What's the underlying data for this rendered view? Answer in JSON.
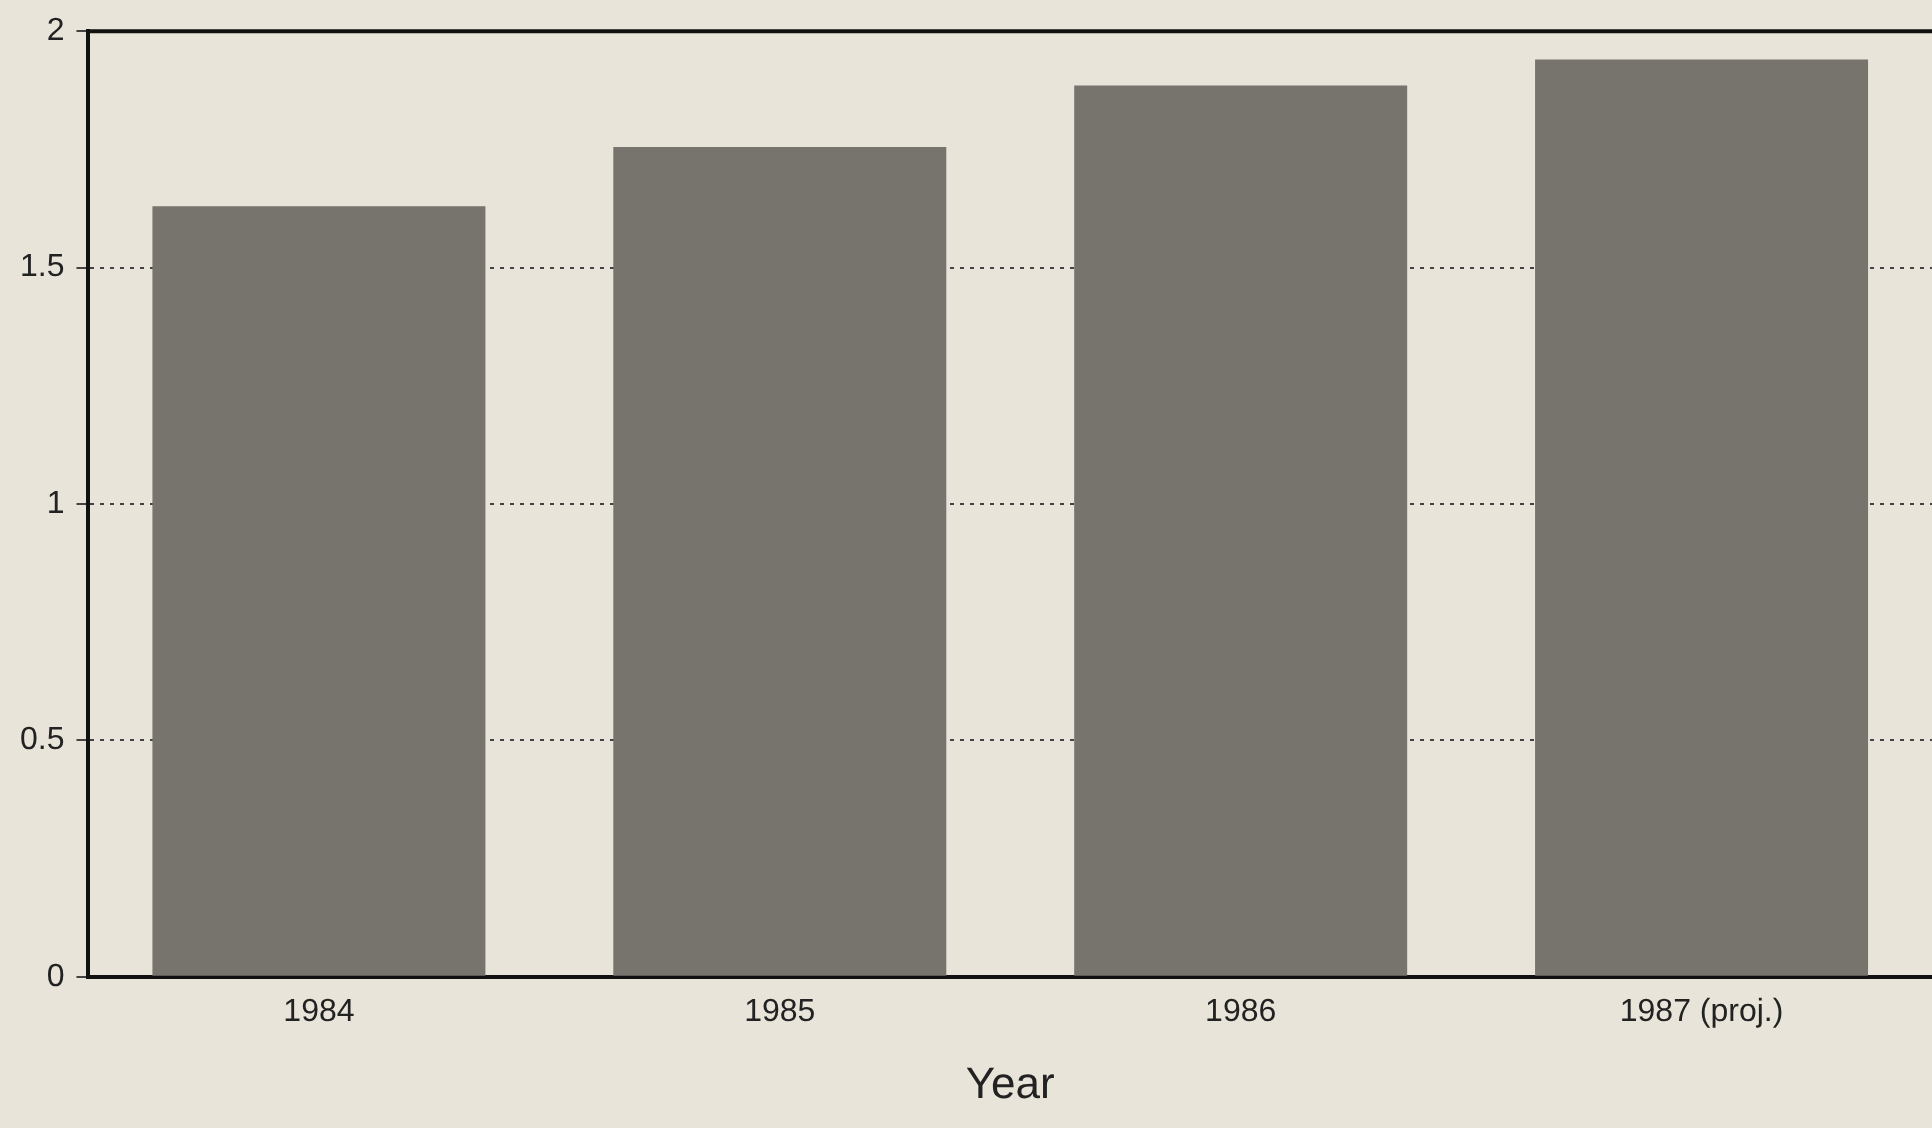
{
  "chart_data": {
    "type": "bar",
    "xlabel": "Year",
    "categories": [
      "1984",
      "1985",
      "1986",
      "1987 (proj.)"
    ],
    "values": [
      1.63,
      1.755,
      1.885,
      1.94
    ],
    "color": "#77736d",
    "ylim": [
      0,
      2
    ],
    "yticks": [
      0,
      0.5,
      1,
      1.5,
      2
    ],
    "grid": "y",
    "legend": false
  }
}
